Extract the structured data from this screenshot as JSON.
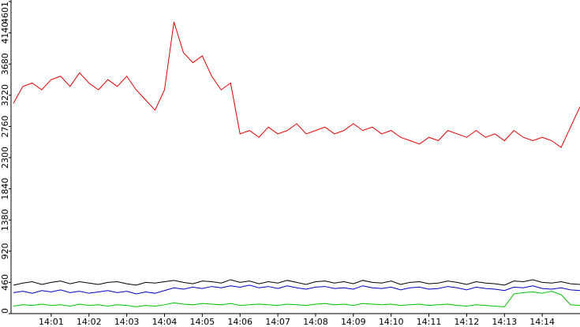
{
  "chart_data": {
    "type": "line",
    "x": [
      0,
      0.25,
      0.5,
      0.75,
      1,
      1.25,
      1.5,
      1.75,
      2,
      2.25,
      2.5,
      2.75,
      3,
      3.25,
      3.5,
      3.75,
      4,
      4.25,
      4.5,
      4.75,
      5,
      5.25,
      5.5,
      5.75,
      6,
      6.25,
      6.5,
      6.75,
      7,
      7.25,
      7.5,
      7.75,
      8,
      8.25,
      8.5,
      8.75,
      9,
      9.25,
      9.5,
      9.75,
      10,
      10.25,
      10.5,
      10.75,
      11,
      11.25,
      11.5,
      11.75,
      12,
      12.25,
      12.5,
      12.75,
      13,
      13.25,
      13.5,
      13.75,
      14,
      14.25,
      14.5,
      14.75,
      15
    ],
    "xlim": [
      0,
      15
    ],
    "xticks": [
      {
        "value": 1,
        "label": "14:01"
      },
      {
        "value": 2,
        "label": "14:02"
      },
      {
        "value": 3,
        "label": "14:03"
      },
      {
        "value": 4,
        "label": "14:04"
      },
      {
        "value": 5,
        "label": "14:05"
      },
      {
        "value": 6,
        "label": "14:06"
      },
      {
        "value": 7,
        "label": "14:07"
      },
      {
        "value": 8,
        "label": "14:08"
      },
      {
        "value": 9,
        "label": "14:09"
      },
      {
        "value": 10,
        "label": "14:10"
      },
      {
        "value": 11,
        "label": "14:11"
      },
      {
        "value": 12,
        "label": "14:12"
      },
      {
        "value": 13,
        "label": "14:13"
      },
      {
        "value": 14,
        "label": "14:14"
      }
    ],
    "ylim": [
      0,
      4601
    ],
    "yticks": [
      0,
      460,
      920,
      1380,
      1840,
      2300,
      2760,
      3220,
      3680,
      4140,
      4601
    ],
    "series": [
      {
        "color": "#e00000",
        "values": [
          3100,
          3350,
          3400,
          3300,
          3450,
          3500,
          3350,
          3550,
          3400,
          3300,
          3450,
          3350,
          3500,
          3300,
          3150,
          3000,
          3300,
          4300,
          3850,
          3700,
          3800,
          3500,
          3300,
          3400,
          2650,
          2700,
          2600,
          2750,
          2650,
          2700,
          2800,
          2650,
          2700,
          2750,
          2650,
          2700,
          2800,
          2700,
          2750,
          2650,
          2700,
          2600,
          2550,
          2500,
          2600,
          2550,
          2700,
          2650,
          2600,
          2700,
          2600,
          2650,
          2550,
          2700,
          2600,
          2550,
          2600,
          2550,
          2450,
          2750,
          3050
        ]
      },
      {
        "color": "#000000",
        "values": [
          420,
          450,
          470,
          430,
          460,
          480,
          440,
          470,
          450,
          430,
          460,
          470,
          440,
          420,
          460,
          450,
          470,
          490,
          460,
          440,
          480,
          470,
          450,
          500,
          460,
          480,
          440,
          470,
          450,
          490,
          460,
          430,
          470,
          480,
          450,
          470,
          440,
          490,
          460,
          450,
          480,
          430,
          460,
          470,
          440,
          450,
          480,
          460,
          430,
          470,
          450,
          440,
          420,
          480,
          470,
          500,
          460,
          450,
          470,
          440,
          430
        ]
      },
      {
        "color": "#0000c0",
        "values": [
          310,
          330,
          300,
          340,
          320,
          350,
          310,
          330,
          300,
          320,
          340,
          310,
          330,
          290,
          320,
          300,
          340,
          380,
          360,
          390,
          370,
          400,
          380,
          410,
          390,
          420,
          380,
          400,
          370,
          410,
          380,
          360,
          390,
          400,
          370,
          380,
          360,
          410,
          380,
          370,
          390,
          350,
          380,
          390,
          360,
          370,
          400,
          380,
          350,
          390,
          370,
          360,
          340,
          390,
          380,
          410,
          370,
          360,
          380,
          350,
          340
        ]
      },
      {
        "color": "#00c000",
        "values": [
          110,
          130,
          120,
          140,
          120,
          130,
          110,
          140,
          120,
          130,
          110,
          130,
          120,
          100,
          120,
          110,
          130,
          160,
          140,
          130,
          150,
          140,
          130,
          150,
          120,
          130,
          140,
          130,
          120,
          140,
          130,
          120,
          140,
          150,
          130,
          140,
          120,
          150,
          140,
          130,
          140,
          120,
          130,
          140,
          120,
          130,
          140,
          120,
          110,
          130,
          120,
          110,
          100,
          290,
          310,
          320,
          300,
          330,
          280,
          130,
          120
        ]
      }
    ]
  }
}
